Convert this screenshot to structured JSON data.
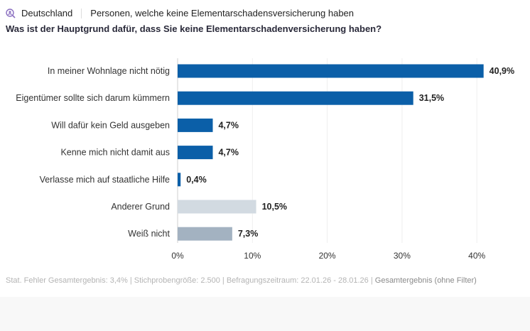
{
  "header": {
    "region": "Deutschland",
    "segment": "Personen, welche keine Elementarschadensversicherung haben",
    "icon": "search-person-icon"
  },
  "question": "Was ist der Hauptgrund dafür, dass Sie keine Elementarschadenversicherung haben?",
  "chart_data": {
    "type": "bar",
    "orientation": "horizontal",
    "categories": [
      "In meiner Wohnlage nicht nötig",
      "Eigentümer sollte sich darum kümmern",
      "Will dafür kein Geld ausgeben",
      "Kenne mich nicht damit aus",
      "Verlasse mich auf staatliche Hilfe",
      "Anderer Grund",
      "Weiß nicht"
    ],
    "values": [
      40.9,
      31.5,
      4.7,
      4.7,
      0.4,
      10.5,
      7.3
    ],
    "data_labels": [
      "40,9%",
      "31,5%",
      "4,7%",
      "4,7%",
      "0,4%",
      "10,5%",
      "7,3%"
    ],
    "colors": [
      "#0b5fa8",
      "#0b5fa8",
      "#0b5fa8",
      "#0b5fa8",
      "#0b5fa8",
      "#d2dae1",
      "#a3b2c1"
    ],
    "xlim": [
      0,
      45
    ],
    "xticks": [
      0,
      10,
      20,
      30,
      40
    ],
    "xtick_labels": [
      "0%",
      "10%",
      "20%",
      "30%",
      "40%"
    ],
    "grid": true
  },
  "footer": {
    "meta": "Stat. Fehler Gesamtergebnis: 3,4% | Stichprobengröße: 2.500 | Befragungszeitraum: 22.01.26 - 28.01.26 | ",
    "filter": "Gesamtergebnis (ohne Filter)"
  }
}
